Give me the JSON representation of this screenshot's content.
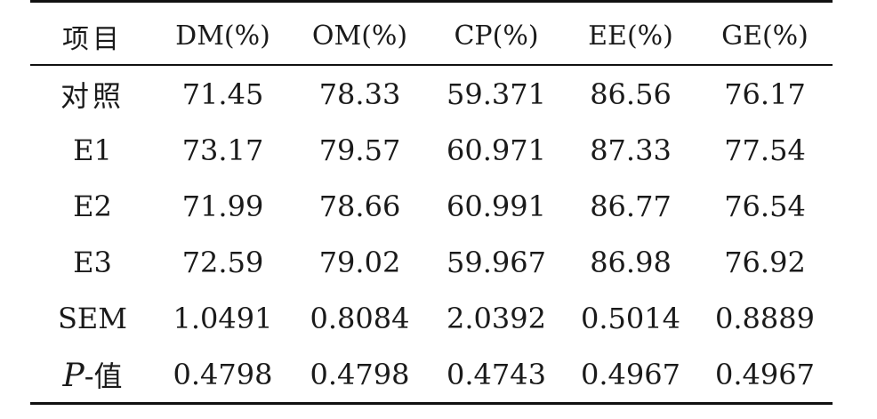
{
  "table": {
    "headers": [
      "项目",
      "DM(%)",
      "OM(%)",
      "CP(%)",
      "EE(%)",
      "GE(%)"
    ],
    "rows": [
      {
        "label": "对照",
        "values": [
          "71.45",
          "78.33",
          "59.371",
          "86.56",
          "76.17"
        ]
      },
      {
        "label": "E1",
        "values": [
          "73.17",
          "79.57",
          "60.971",
          "87.33",
          "77.54"
        ]
      },
      {
        "label": "E2",
        "values": [
          "71.99",
          "78.66",
          "60.991",
          "86.77",
          "76.54"
        ]
      },
      {
        "label": "E3",
        "values": [
          "72.59",
          "79.02",
          "59.967",
          "86.98",
          "76.92"
        ]
      },
      {
        "label": "SEM",
        "values": [
          "1.0491",
          "0.8084",
          "2.0392",
          "0.5014",
          "0.8889"
        ]
      },
      {
        "label_italic": "P",
        "label_suffix": "-值",
        "values": [
          "0.4798",
          "0.4798",
          "0.4743",
          "0.4967",
          "0.4967"
        ]
      }
    ]
  }
}
